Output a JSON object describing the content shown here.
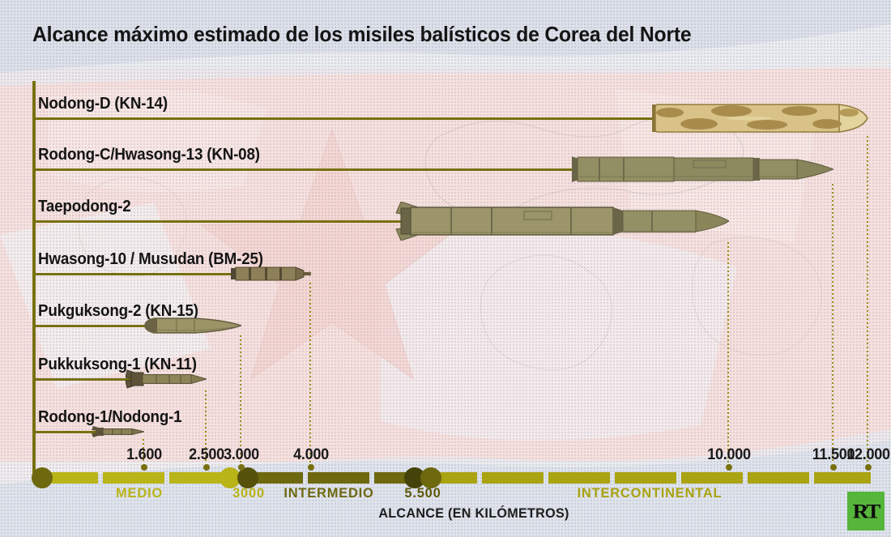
{
  "title": "Alcance máximo estimado de los misiles balísticos de Corea del Norte",
  "logo": {
    "text": "RT"
  },
  "colors": {
    "axis_olive": "#77700f",
    "medio_yellow": "#b9b418",
    "intermedio_olive": "#6e680f",
    "intercontinental_yellow": "#aaa312",
    "boundary_dark": "#56520c",
    "boundary_darker": "#45420a",
    "rt_green": "#56b53b"
  },
  "chart_data": {
    "type": "bar",
    "orientation": "horizontal",
    "title": "Alcance máximo estimado de los misiles balísticos de Corea del Norte",
    "xlabel": "ALCANCE (EN KILÓMETROS)",
    "x_unit": "km",
    "xlim": [
      0,
      12200
    ],
    "grid": false,
    "missiles": [
      {
        "name": "Nodong-D (KN-14)",
        "range_km": 12000,
        "tick_label": "12.000"
      },
      {
        "name": "Rodong-C/Hwasong-13 (KN-08)",
        "range_km": 11500,
        "tick_label": "11.500"
      },
      {
        "name": "Taepodong-2",
        "range_km": 10000,
        "tick_label": "10.000"
      },
      {
        "name": "Hwasong-10 / Musudan (BM-25)",
        "range_km": 4000,
        "tick_label": "4.000"
      },
      {
        "name": "Pukguksong-2 (KN-15)",
        "range_km": 3000,
        "tick_label": "3.000"
      },
      {
        "name": "Pukkuksong-1 (KN-11)",
        "range_km": 2500,
        "tick_label": "2.500"
      },
      {
        "name": "Rodong-1/Nodong-1",
        "range_km": 1600,
        "tick_label": "1.600"
      }
    ],
    "ticks": [
      {
        "km": 1600,
        "label": "1.600"
      },
      {
        "km": 2500,
        "label": "2.500"
      },
      {
        "km": 3000,
        "label": "3.000"
      },
      {
        "km": 4000,
        "label": "4.000"
      },
      {
        "km": 10000,
        "label": "10.000"
      },
      {
        "km": 11500,
        "label": "11.500"
      },
      {
        "km": 12000,
        "label": "12.000"
      }
    ],
    "bands": [
      {
        "label": "MEDIO",
        "from_km": 0,
        "to_km": 3000
      },
      {
        "label": "INTERMEDIO",
        "from_km": 3000,
        "to_km": 5500
      },
      {
        "label": "INTERCONTINENTAL",
        "from_km": 5500,
        "to_km": 12000
      }
    ],
    "band_boundary_labels": [
      {
        "km": 3000,
        "label": "3000"
      },
      {
        "km": 5500,
        "label": "5.500"
      }
    ]
  }
}
